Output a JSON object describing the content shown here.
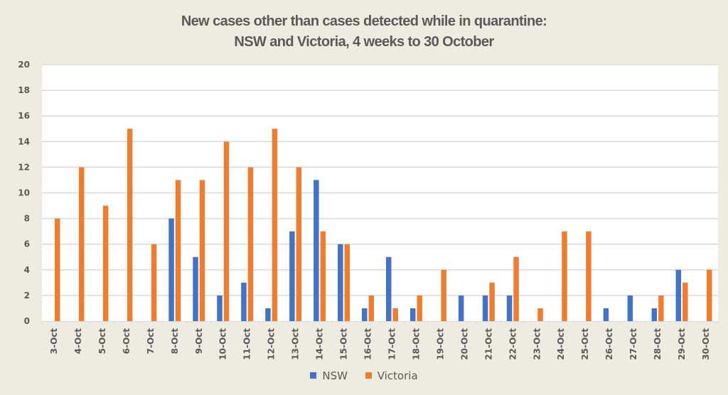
{
  "chart_data": {
    "type": "bar",
    "title_lines": [
      "New cases other than cases detected while in quarantine:",
      "NSW and Victoria, 4 weeks to 30 October"
    ],
    "xlabel": "",
    "ylabel": "",
    "ylim": [
      0,
      20
    ],
    "yticks": [
      "0",
      "2",
      "4",
      "6",
      "8",
      "10",
      "12",
      "14",
      "16",
      "18",
      "20"
    ],
    "grid": true,
    "legend_position": "bottom",
    "categories": [
      "3-Oct",
      "4-Oct",
      "5-Oct",
      "6-Oct",
      "7-Oct",
      "8-Oct",
      "9-Oct",
      "10-Oct",
      "11-Oct",
      "12-Oct",
      "13-Oct",
      "14-Oct",
      "15-Oct",
      "16-Oct",
      "17-Oct",
      "18-Oct",
      "19-Oct",
      "20-Oct",
      "21-Oct",
      "22-Oct",
      "23-Oct",
      "24-Oct",
      "25-Oct",
      "26-Oct",
      "27-Oct",
      "28-Oct",
      "29-Oct",
      "30-Oct"
    ],
    "series": [
      {
        "name": "NSW",
        "color": "#4472c4",
        "values": [
          0,
          0,
          0,
          0,
          0,
          8,
          5,
          2,
          3,
          1,
          7,
          11,
          6,
          1,
          5,
          1,
          0,
          2,
          2,
          2,
          0,
          0,
          0,
          1,
          2,
          1,
          4,
          0
        ]
      },
      {
        "name": "Victoria",
        "color": "#ed7d31",
        "values": [
          8,
          12,
          9,
          15,
          6,
          11,
          11,
          14,
          12,
          15,
          12,
          7,
          6,
          2,
          1,
          2,
          4,
          0,
          3,
          5,
          1,
          7,
          7,
          0,
          0,
          2,
          3,
          4
        ]
      }
    ]
  }
}
